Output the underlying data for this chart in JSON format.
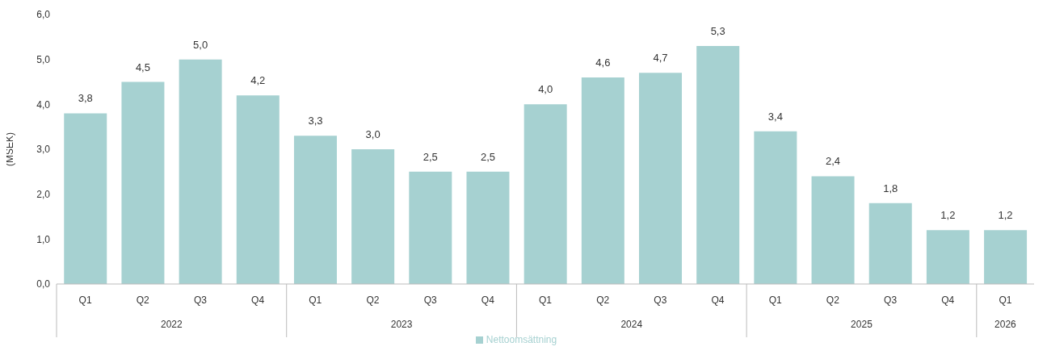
{
  "chart_data": {
    "type": "bar",
    "ylabel": "(MSEK)",
    "categories": [
      "Q1",
      "Q2",
      "Q3",
      "Q4",
      "Q1",
      "Q2",
      "Q3",
      "Q4",
      "Q1",
      "Q2",
      "Q3",
      "Q4",
      "Q1",
      "Q2",
      "Q3",
      "Q4",
      "Q1"
    ],
    "annotations": [
      "2022",
      "2023",
      "2024",
      "2025",
      "2026"
    ],
    "series": [
      {
        "name": "Nettoomsättning",
        "color": "#a6d1d1",
        "values": [
          3.8,
          4.5,
          5.0,
          4.2,
          3.3,
          3.0,
          2.5,
          2.5,
          4.0,
          4.6,
          4.7,
          5.3,
          3.4,
          2.4,
          1.8,
          1.2,
          1.2
        ],
        "value_labels": [
          "3,8",
          "4,5",
          "5,0",
          "4,2",
          "3,3",
          "3,0",
          "2,5",
          "2,5",
          "4,0",
          "4,6",
          "4,7",
          "5,3",
          "3,4",
          "2,4",
          "1,8",
          "1,2",
          "1,2"
        ]
      }
    ],
    "ylim": [
      0,
      6
    ],
    "yticks": [
      {
        "value": 0,
        "label": "0,0"
      },
      {
        "value": 1,
        "label": "1,0"
      },
      {
        "value": 2,
        "label": "2,0"
      },
      {
        "value": 3,
        "label": "3,0"
      },
      {
        "value": 4,
        "label": "4,0"
      },
      {
        "value": 5,
        "label": "5,0"
      },
      {
        "value": 6,
        "label": "6,0"
      }
    ],
    "legend": "bottom"
  }
}
